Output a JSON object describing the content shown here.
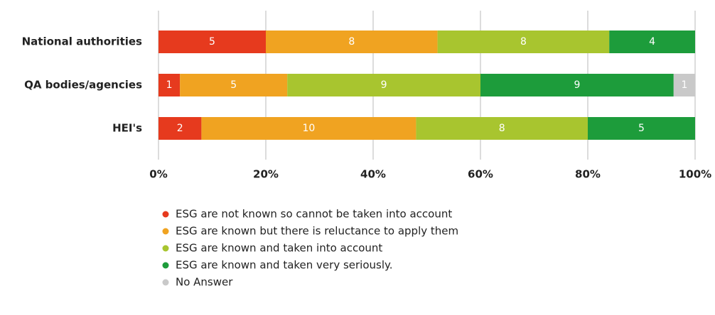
{
  "chart_data": {
    "type": "bar",
    "orientation": "horizontal",
    "stacked": "percent",
    "categories": [
      "National authorities",
      "QA bodies/agencies",
      "HEI's"
    ],
    "series": [
      {
        "name": "ESG are not known so cannot be taken into account",
        "color": "#e63a1e",
        "values": [
          5,
          1,
          2
        ]
      },
      {
        "name": "ESG are known but there is reluctance to apply them",
        "color": "#f0a321",
        "values": [
          8,
          5,
          10
        ]
      },
      {
        "name": "ESG are known and taken into account",
        "color": "#a8c52f",
        "values": [
          8,
          9,
          8
        ]
      },
      {
        "name": "ESG are known and taken very seriously.",
        "color": "#1d9c3b",
        "values": [
          4,
          9,
          5
        ]
      },
      {
        "name": "No Answer",
        "color": "#c9c9c9",
        "values": [
          0,
          1,
          0
        ]
      }
    ],
    "xlim": [
      0,
      100
    ],
    "xticks": [
      {
        "value": 0,
        "label": "0%"
      },
      {
        "value": 20,
        "label": "20%"
      },
      {
        "value": 40,
        "label": "40%"
      },
      {
        "value": 60,
        "label": "60%"
      },
      {
        "value": 80,
        "label": "80%"
      },
      {
        "value": 100,
        "label": "100%"
      }
    ],
    "grid": true,
    "legend": "bottom"
  }
}
